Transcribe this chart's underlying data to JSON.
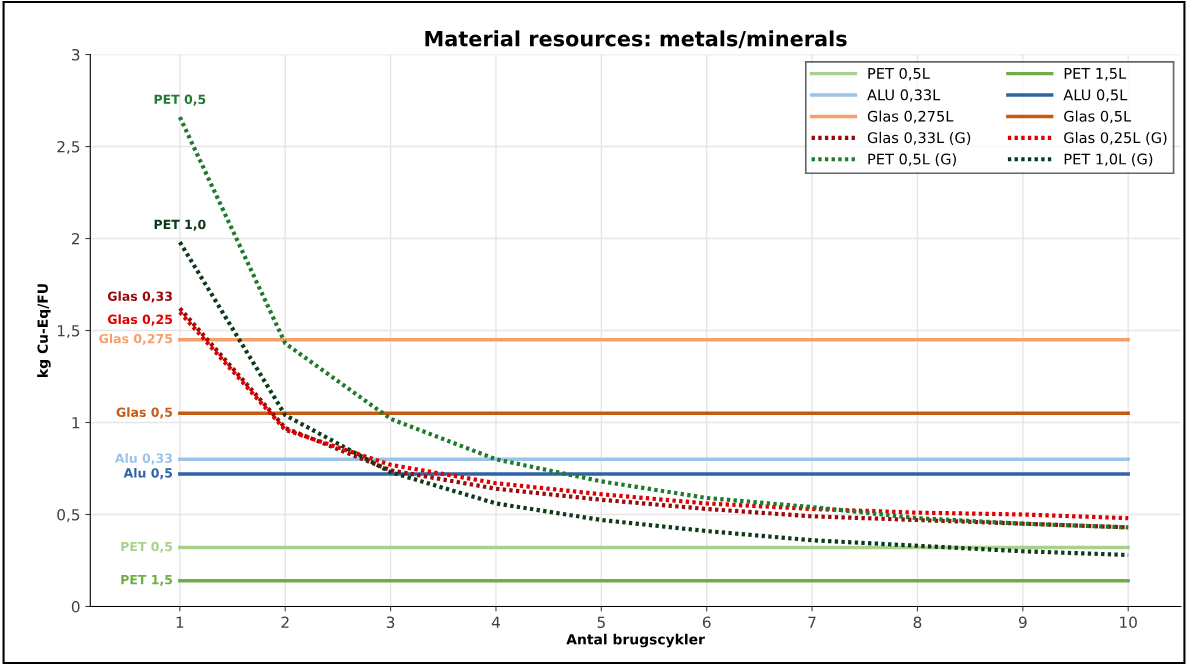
{
  "chart_data": {
    "type": "line",
    "title": "Material resources: metals/minerals",
    "xlabel": "Antal brugscykler",
    "ylabel": "kg Cu-Eq/FU",
    "categories": [
      "1",
      "2",
      "3",
      "4",
      "5",
      "6",
      "7",
      "8",
      "9",
      "10"
    ],
    "ylim": [
      0,
      3
    ],
    "yticks": [
      0,
      {
        "value": 0.5,
        "label": "0,5"
      },
      1,
      {
        "value": 1.5,
        "label": "1,5"
      },
      2,
      {
        "value": 2.5,
        "label": "2,5"
      },
      3
    ],
    "grid": true,
    "legend": "top right",
    "marker": "none",
    "series": [
      {
        "name": "PET 0,5L",
        "color": "#a9d18e",
        "line_style": "solid",
        "values": [
          0.32,
          0.32,
          0.32,
          0.32,
          0.32,
          0.32,
          0.32,
          0.32,
          0.32,
          0.32
        ]
      },
      {
        "name": "PET 1,5L",
        "color": "#70ad47",
        "line_style": "solid",
        "values": [
          0.14,
          0.14,
          0.14,
          0.14,
          0.14,
          0.14,
          0.14,
          0.14,
          0.14,
          0.14
        ]
      },
      {
        "name": "ALU 0,33L",
        "color": "#9dc3e6",
        "line_style": "solid",
        "values": [
          0.8,
          0.8,
          0.8,
          0.8,
          0.8,
          0.8,
          0.8,
          0.8,
          0.8,
          0.8
        ]
      },
      {
        "name": "ALU 0,5L",
        "color": "#2e63a6",
        "line_style": "solid",
        "values": [
          0.72,
          0.72,
          0.72,
          0.72,
          0.72,
          0.72,
          0.72,
          0.72,
          0.72,
          0.72
        ]
      },
      {
        "name": "Glas 0,275L",
        "color": "#f4a06a",
        "line_style": "solid",
        "values": [
          1.45,
          1.45,
          1.45,
          1.45,
          1.45,
          1.45,
          1.45,
          1.45,
          1.45,
          1.45
        ]
      },
      {
        "name": "Glas 0,5L",
        "color": "#c55a11",
        "line_style": "solid",
        "values": [
          1.05,
          1.05,
          1.05,
          1.05,
          1.05,
          1.05,
          1.05,
          1.05,
          1.05,
          1.05
        ]
      },
      {
        "name": "Glas 0,33L (G)",
        "color": "#9b0a0a",
        "line_style": "dotted",
        "values": [
          1.62,
          0.97,
          0.74,
          0.64,
          0.58,
          0.53,
          0.49,
          0.47,
          0.45,
          0.43
        ]
      },
      {
        "name": "Glas 0,25L (G)",
        "color": "#e00000",
        "line_style": "dotted",
        "values": [
          1.6,
          0.96,
          0.77,
          0.67,
          0.61,
          0.56,
          0.53,
          0.51,
          0.5,
          0.48
        ]
      },
      {
        "name": "PET 0,5L (G)",
        "color": "#1f7a2e",
        "line_style": "dotted",
        "values": [
          2.66,
          1.43,
          1.02,
          0.8,
          0.68,
          0.59,
          0.54,
          0.48,
          0.45,
          0.43
        ]
      },
      {
        "name": "PET 1,0L (G)",
        "color": "#0d3b1a",
        "line_style": "dotted",
        "values": [
          1.98,
          1.04,
          0.73,
          0.56,
          0.47,
          0.41,
          0.36,
          0.33,
          0.3,
          0.28
        ]
      }
    ],
    "annotations": [
      {
        "text": "PET 0,5",
        "x": "1",
        "y": 0.32
      },
      {
        "text": "PET 1,5",
        "x": "1",
        "y": 0.14
      },
      {
        "text": "Alu 0,33",
        "x": "1",
        "y": 0.8
      },
      {
        "text": "Alu 0,5",
        "x": "1",
        "y": 0.72
      },
      {
        "text": "Glas 0,275",
        "x": "1",
        "y": 1.45
      },
      {
        "text": "Glas 0,5",
        "x": "1",
        "y": 1.05
      },
      {
        "text": "Glas 0,33",
        "x": "1",
        "y": 1.62
      },
      {
        "text": "Glas 0,25",
        "x": "1",
        "y": 1.6
      },
      {
        "text": "PET 0,5",
        "x": "1",
        "y": 2.66
      },
      {
        "text": "PET 1,0",
        "x": "1",
        "y": 1.98
      }
    ]
  }
}
